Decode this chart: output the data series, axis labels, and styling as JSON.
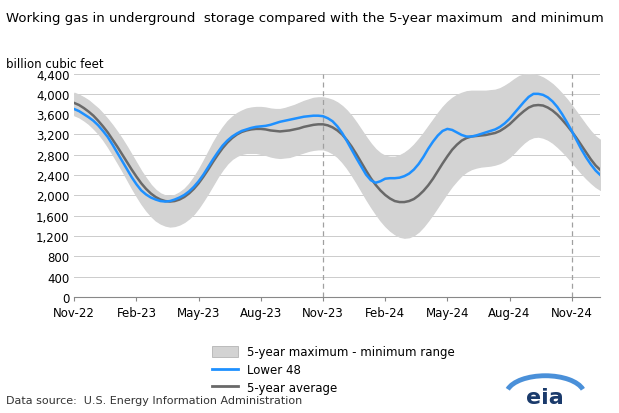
{
  "title": "Working gas in underground  storage compared with the 5-year maximum  and minimum",
  "ylabel": "billion cubic feet",
  "source": "Data source:  U.S. Energy Information Administration",
  "ylim": [
    0,
    4400
  ],
  "yticks": [
    0,
    400,
    800,
    1200,
    1600,
    2000,
    2400,
    2800,
    3200,
    3600,
    4000,
    4400
  ],
  "xtick_labels": [
    "Nov-22",
    "Feb-23",
    "May-23",
    "Aug-23",
    "Nov-23",
    "Feb-24",
    "May-24",
    "Aug-24",
    "Nov-24"
  ],
  "xtick_positions": [
    0,
    13,
    26,
    39,
    52,
    65,
    78,
    91,
    104
  ],
  "vline_positions": [
    52,
    104
  ],
  "lower48": [
    3700,
    3660,
    3600,
    3540,
    3470,
    3380,
    3270,
    3150,
    3000,
    2840,
    2680,
    2520,
    2360,
    2220,
    2100,
    2020,
    1960,
    1920,
    1890,
    1880,
    1890,
    1920,
    1960,
    2010,
    2080,
    2170,
    2280,
    2410,
    2560,
    2710,
    2850,
    2980,
    3080,
    3160,
    3220,
    3270,
    3300,
    3330,
    3350,
    3360,
    3370,
    3390,
    3420,
    3450,
    3470,
    3490,
    3510,
    3530,
    3550,
    3560,
    3570,
    3570,
    3560,
    3520,
    3460,
    3360,
    3230,
    3070,
    2900,
    2730,
    2570,
    2410,
    2300,
    2250,
    2280,
    2330,
    2340,
    2340,
    2350,
    2380,
    2430,
    2510,
    2620,
    2760,
    2920,
    3060,
    3180,
    3270,
    3310,
    3290,
    3240,
    3190,
    3160,
    3160,
    3180,
    3210,
    3240,
    3270,
    3300,
    3350,
    3420,
    3510,
    3620,
    3730,
    3840,
    3940,
    4000,
    4000,
    3980,
    3930,
    3850,
    3740,
    3600,
    3440,
    3270,
    3090,
    2910,
    2750,
    2610,
    2490,
    2400
  ],
  "avg5yr": [
    3820,
    3780,
    3720,
    3650,
    3570,
    3470,
    3360,
    3240,
    3100,
    2960,
    2810,
    2660,
    2510,
    2370,
    2240,
    2130,
    2040,
    1970,
    1920,
    1890,
    1880,
    1890,
    1920,
    1970,
    2040,
    2130,
    2240,
    2370,
    2510,
    2660,
    2800,
    2930,
    3040,
    3130,
    3200,
    3250,
    3280,
    3300,
    3310,
    3310,
    3300,
    3280,
    3270,
    3260,
    3270,
    3280,
    3300,
    3320,
    3350,
    3370,
    3390,
    3400,
    3400,
    3380,
    3340,
    3280,
    3200,
    3090,
    2960,
    2810,
    2650,
    2490,
    2340,
    2210,
    2100,
    2010,
    1940,
    1890,
    1870,
    1870,
    1890,
    1930,
    2000,
    2090,
    2200,
    2330,
    2480,
    2630,
    2770,
    2900,
    3000,
    3080,
    3130,
    3160,
    3170,
    3180,
    3190,
    3210,
    3230,
    3270,
    3330,
    3400,
    3490,
    3580,
    3660,
    3730,
    3770,
    3780,
    3770,
    3730,
    3670,
    3590,
    3490,
    3380,
    3260,
    3130,
    2990,
    2850,
    2710,
    2590,
    2500
  ],
  "max5yr": [
    4020,
    3980,
    3930,
    3870,
    3790,
    3710,
    3610,
    3500,
    3380,
    3250,
    3110,
    2960,
    2800,
    2640,
    2480,
    2340,
    2210,
    2110,
    2040,
    2000,
    1990,
    2010,
    2060,
    2130,
    2230,
    2360,
    2510,
    2680,
    2860,
    3040,
    3200,
    3340,
    3460,
    3550,
    3620,
    3670,
    3710,
    3730,
    3740,
    3740,
    3730,
    3710,
    3700,
    3700,
    3720,
    3750,
    3780,
    3820,
    3860,
    3890,
    3920,
    3930,
    3930,
    3910,
    3880,
    3830,
    3760,
    3670,
    3560,
    3430,
    3290,
    3150,
    3020,
    2910,
    2830,
    2780,
    2760,
    2760,
    2790,
    2840,
    2910,
    3000,
    3110,
    3230,
    3360,
    3490,
    3620,
    3740,
    3840,
    3920,
    3980,
    4020,
    4050,
    4060,
    4060,
    4060,
    4060,
    4070,
    4080,
    4110,
    4160,
    4220,
    4290,
    4350,
    4380,
    4390,
    4380,
    4360,
    4320,
    4260,
    4190,
    4100,
    4000,
    3890,
    3770,
    3640,
    3510,
    3380,
    3260,
    3160,
    3090
  ],
  "min5yr": [
    3580,
    3540,
    3480,
    3410,
    3320,
    3220,
    3100,
    2960,
    2810,
    2650,
    2490,
    2320,
    2150,
    1990,
    1840,
    1710,
    1600,
    1510,
    1450,
    1410,
    1390,
    1400,
    1430,
    1480,
    1550,
    1640,
    1760,
    1900,
    2050,
    2210,
    2370,
    2510,
    2630,
    2720,
    2780,
    2820,
    2840,
    2840,
    2840,
    2820,
    2800,
    2770,
    2750,
    2740,
    2750,
    2760,
    2790,
    2820,
    2850,
    2880,
    2900,
    2910,
    2910,
    2880,
    2830,
    2760,
    2660,
    2540,
    2400,
    2250,
    2090,
    1930,
    1780,
    1640,
    1510,
    1400,
    1310,
    1240,
    1190,
    1170,
    1180,
    1220,
    1290,
    1390,
    1510,
    1640,
    1780,
    1920,
    2060,
    2190,
    2300,
    2400,
    2470,
    2520,
    2550,
    2570,
    2580,
    2590,
    2610,
    2640,
    2690,
    2760,
    2850,
    2950,
    3040,
    3110,
    3150,
    3160,
    3140,
    3100,
    3040,
    2960,
    2870,
    2770,
    2660,
    2550,
    2440,
    2340,
    2250,
    2170,
    2110
  ],
  "band_color": "#d3d3d3",
  "lower48_color": "#1e90ff",
  "avg5yr_color": "#696969",
  "vline_color": "#a0a0a0",
  "background_color": "#ffffff",
  "grid_color": "#cccccc"
}
